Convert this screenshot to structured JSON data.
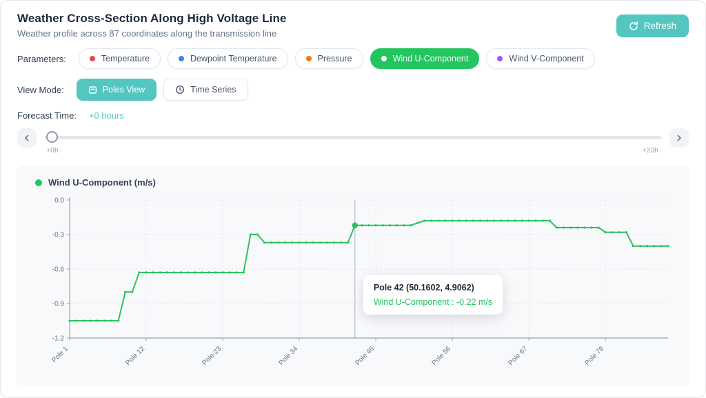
{
  "header": {
    "title": "Weather Cross-Section Along High Voltage Line",
    "subtitle": "Weather profile across 87 coordinates along the transmission line",
    "refresh_label": "Refresh"
  },
  "parameters": {
    "label": "Parameters:",
    "items": [
      {
        "label": "Temperature",
        "dot_color": "#ef4444",
        "selected": false
      },
      {
        "label": "Dewpoint Temperature",
        "dot_color": "#3b82f6",
        "selected": false
      },
      {
        "label": "Pressure",
        "dot_color": "#f97316",
        "selected": false
      },
      {
        "label": "Wind U-Component",
        "dot_color": "#ffffff",
        "selected": true
      },
      {
        "label": "Wind V-Component",
        "dot_color": "#a855f7",
        "selected": false
      }
    ]
  },
  "view_mode": {
    "label": "View Mode:",
    "options": [
      {
        "label": "Poles View",
        "icon": "poles-view-icon",
        "selected": true
      },
      {
        "label": "Time Series",
        "icon": "clock-icon",
        "selected": false
      }
    ]
  },
  "forecast": {
    "label": "Forecast Time:",
    "value": "+0 hours"
  },
  "slider": {
    "min_label": "+0h",
    "max_label": "+23h"
  },
  "colors": {
    "accent_teal": "#53c6bf",
    "accent_green": "#22c55e",
    "selected_pill_bg": "#22c55e"
  },
  "chart_data": {
    "type": "line",
    "legend_label": "Wind U-Component (m/s)",
    "ylabel": "",
    "ylim": [
      -1.2,
      0.0
    ],
    "y_ticks": [
      0.0,
      -0.3,
      -0.6,
      -0.9,
      -1.2
    ],
    "x_tick_poles": [
      1,
      12,
      23,
      34,
      45,
      56,
      67,
      78
    ],
    "x_tick_labels": [
      "Pole 1",
      "Pole 12",
      "Pole 23",
      "Pole 34",
      "Pole 45",
      "Pole 56",
      "Pole 67",
      "Pole 78"
    ],
    "grid": true,
    "series": [
      {
        "name": "Wind U-Component",
        "color": "#2bc15f",
        "values": [
          -1.05,
          -1.05,
          -1.05,
          -1.05,
          -1.05,
          -1.05,
          -1.05,
          -1.05,
          -0.8,
          -0.8,
          -0.63,
          -0.63,
          -0.63,
          -0.63,
          -0.63,
          -0.63,
          -0.63,
          -0.63,
          -0.63,
          -0.63,
          -0.63,
          -0.63,
          -0.63,
          -0.63,
          -0.63,
          -0.63,
          -0.3,
          -0.3,
          -0.37,
          -0.37,
          -0.37,
          -0.37,
          -0.37,
          -0.37,
          -0.37,
          -0.37,
          -0.37,
          -0.37,
          -0.37,
          -0.37,
          -0.37,
          -0.22,
          -0.22,
          -0.22,
          -0.22,
          -0.22,
          -0.22,
          -0.22,
          -0.22,
          -0.22,
          -0.2,
          -0.18,
          -0.18,
          -0.18,
          -0.18,
          -0.18,
          -0.18,
          -0.18,
          -0.18,
          -0.18,
          -0.18,
          -0.18,
          -0.18,
          -0.18,
          -0.18,
          -0.18,
          -0.18,
          -0.18,
          -0.18,
          -0.18,
          -0.24,
          -0.24,
          -0.24,
          -0.24,
          -0.24,
          -0.24,
          -0.24,
          -0.28,
          -0.28,
          -0.28,
          -0.28,
          -0.4,
          -0.4,
          -0.4,
          -0.4,
          -0.4,
          -0.4
        ]
      }
    ],
    "highlight": {
      "pole": 42,
      "value": -0.22
    },
    "tooltip": {
      "title": "Pole 42 (50.1602, 4.9062)",
      "value": "Wind U-Component : -0.22 m/s"
    }
  }
}
